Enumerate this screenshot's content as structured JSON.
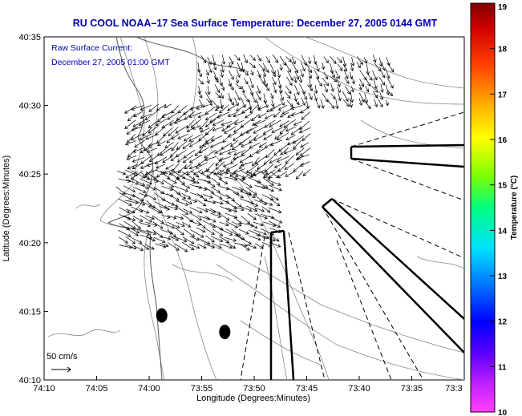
{
  "chart_data": {
    "type": "quiver",
    "title": "RU COOL  NOAA–17  Sea Surface Temperature:  December 27, 2005 0144 GMT",
    "annotation_lines": [
      "Raw Surface Current:",
      "December 27, 2005 01:00 GMT"
    ],
    "scale_label": "50 cm/s",
    "xlabel": "Longitude (Degrees:Minutes)",
    "ylabel": "Latitude (Degrees:Minutes)",
    "x_ticks": [
      {
        "value": -74.1667,
        "label": "74:10"
      },
      {
        "value": -74.0833,
        "label": "74:05"
      },
      {
        "value": -74.0,
        "label": "74:00"
      },
      {
        "value": -73.9167,
        "label": "73:55"
      },
      {
        "value": -73.8333,
        "label": "73:50"
      },
      {
        "value": -73.75,
        "label": "73:45"
      },
      {
        "value": -73.6667,
        "label": "73:40"
      },
      {
        "value": -73.5833,
        "label": "73:35"
      },
      {
        "value": -73.5,
        "label": "73:3"
      }
    ],
    "y_ticks": [
      {
        "value": 40.1667,
        "label": "40:10"
      },
      {
        "value": 40.25,
        "label": "40:15"
      },
      {
        "value": 40.3333,
        "label": "40:20"
      },
      {
        "value": 40.4167,
        "label": "40:25"
      },
      {
        "value": 40.5,
        "label": "40:30"
      },
      {
        "value": 40.5833,
        "label": "40:35"
      }
    ],
    "xlim": [
      -74.1667,
      -73.5
    ],
    "ylim": [
      40.1667,
      40.5833
    ],
    "colorbar": {
      "label": "Temperature (°C)",
      "range": [
        10,
        19
      ],
      "ticks": [
        "10",
        "11",
        "12",
        "13",
        "14",
        "15",
        "16",
        "17",
        "18",
        "19"
      ],
      "colors": [
        "#ff40ff",
        "#8000ff",
        "#0000ff",
        "#0080ff",
        "#00ffff",
        "#00ff80",
        "#80ff00",
        "#ffff00",
        "#ff8000",
        "#ff0000",
        "#800000"
      ]
    },
    "current_field_regions": [
      {
        "lon": [
          -74.02,
          -73.74
        ],
        "lat": [
          40.42,
          40.5
        ],
        "u_cm_s": -25,
        "v_cm_s": -16
      },
      {
        "lon": [
          -73.92,
          -73.62
        ],
        "lat": [
          40.5,
          40.56
        ],
        "u_cm_s": 10,
        "v_cm_s": -20
      },
      {
        "lon": [
          -74.05,
          -73.8
        ],
        "lat": [
          40.33,
          40.42
        ],
        "u_cm_s": 28,
        "v_cm_s": -14
      }
    ],
    "radial_beams": [
      {
        "bearing_deg": 90,
        "style": "solid"
      },
      {
        "bearing_deg": 120,
        "style": "solid"
      },
      {
        "bearing_deg": 170,
        "style": "solid"
      },
      {
        "bearing_deg": 180,
        "style": "solid"
      },
      {
        "bearing_deg": 70,
        "style": "dashed"
      },
      {
        "bearing_deg": 150,
        "style": "dashed"
      },
      {
        "bearing_deg": 200,
        "style": "dashed"
      }
    ],
    "markers": [
      {
        "lon": -73.98,
        "lat": 40.245,
        "label": ""
      },
      {
        "lon": -73.88,
        "lat": 40.225,
        "label": ""
      }
    ]
  }
}
